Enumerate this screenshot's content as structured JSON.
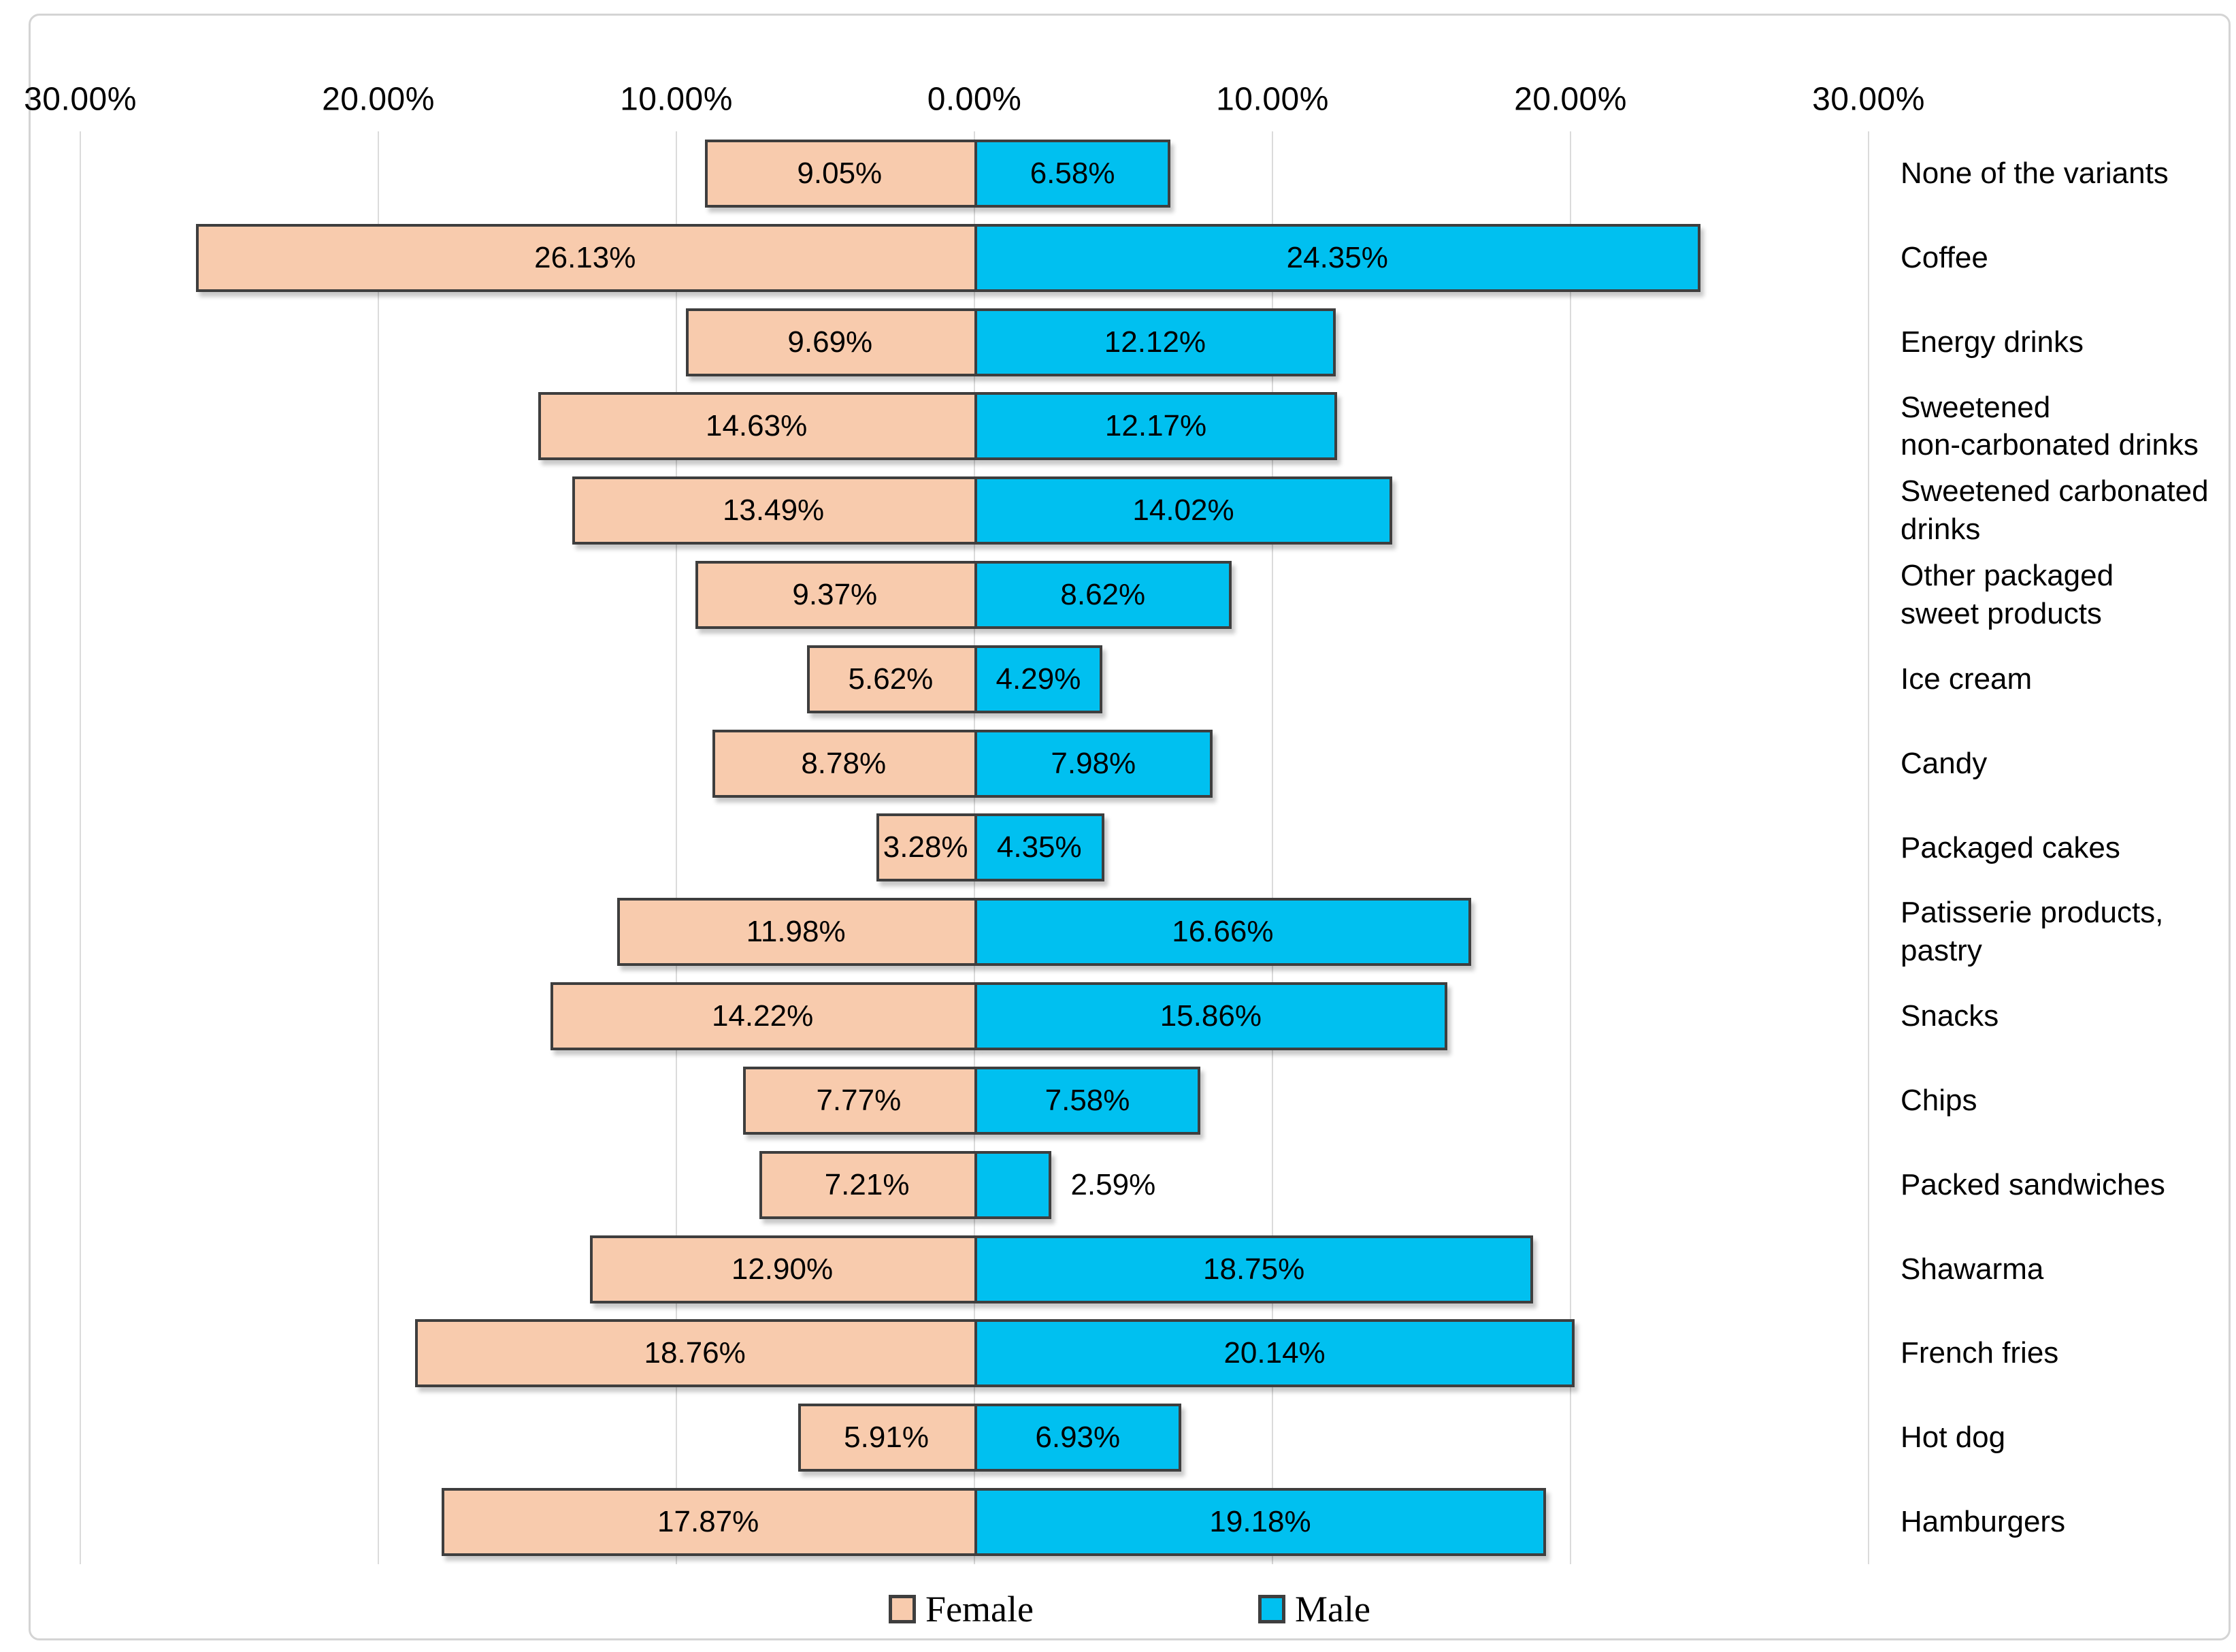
{
  "chart_data": {
    "type": "bar",
    "variant": "diverging-horizontal (population-pyramid style)",
    "title": "",
    "axis": {
      "ticks": [
        "30.00%",
        "20.00%",
        "10.00%",
        "0.00%",
        "10.00%",
        "20.00%",
        "30.00%"
      ],
      "max_abs_percent": 30,
      "gridlines": true,
      "tick_position": "top"
    },
    "categories": [
      "None of the variants",
      "Coffee",
      "Energy drinks",
      "Sweetened\nnon-carbonated drinks",
      "Sweetened carbonated\ndrinks",
      "Other packaged\nsweet products",
      "Ice cream",
      "Candy",
      "Packaged cakes",
      "Patisserie products,\npastry",
      "Snacks",
      "Chips",
      "Packed sandwiches",
      "Shawarma",
      "French fries",
      "Hot dog",
      "Hamburgers"
    ],
    "series": [
      {
        "name": "Female",
        "color": "#F8CBAD",
        "values": [
          9.05,
          26.13,
          9.69,
          14.63,
          13.49,
          9.37,
          5.62,
          8.78,
          3.28,
          11.98,
          14.22,
          7.77,
          7.21,
          12.9,
          18.76,
          5.91,
          17.87
        ]
      },
      {
        "name": "Male",
        "color": "#00C0F0",
        "values": [
          6.58,
          24.35,
          12.12,
          12.17,
          14.02,
          8.62,
          4.29,
          7.98,
          4.35,
          16.66,
          15.86,
          7.58,
          2.59,
          18.75,
          20.14,
          6.93,
          19.18
        ]
      }
    ],
    "value_label_format": "0.00%",
    "legend_position": "bottom"
  },
  "styles": {
    "female_color": "#F8CBAD",
    "male_color": "#00C0F0",
    "bar_border_color": "#3E3E3E",
    "gridline_color": "#DBDBDB",
    "frame_border_color": "#D4D4D4",
    "text_color": "#000000"
  }
}
